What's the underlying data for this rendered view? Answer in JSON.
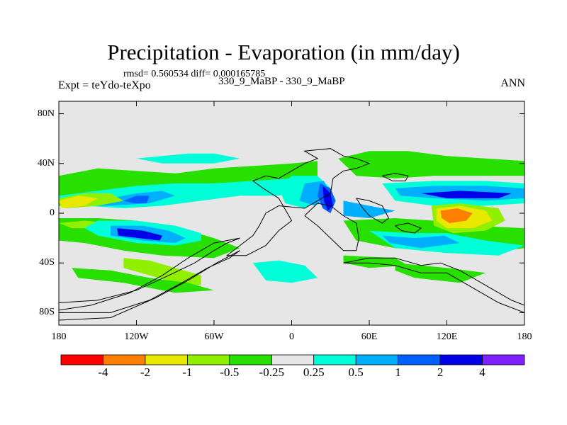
{
  "chart_data": {
    "type": "heatmap",
    "title": "Precipitation - Evaporation (in mm/day)",
    "stats_line": "rmsd= 0.560534 diff= 0.000165785",
    "experiment_label": "Expt = teYdo-teXpo",
    "subtitle": "330_9_MaBP - 330_9_MaBP",
    "season": "ANN",
    "xlabel": "",
    "ylabel": "",
    "x_ticks": [
      "180",
      "120W",
      "60W",
      "0",
      "60E",
      "120E",
      "180"
    ],
    "x_tick_values": [
      -180,
      -120,
      -60,
      0,
      60,
      120,
      180
    ],
    "y_ticks": [
      "80N",
      "40N",
      "0",
      "40S",
      "80S"
    ],
    "y_tick_values": [
      80,
      40,
      0,
      -40,
      -80
    ],
    "xlim": [
      -180,
      180
    ],
    "ylim": [
      -90,
      90
    ],
    "colorbar": {
      "tick_labels": [
        "-4",
        "-2",
        "-1",
        "-0.5",
        "-0.25",
        "0.25",
        "0.5",
        "1",
        "2",
        "4"
      ],
      "colors": [
        "#ff0000",
        "#ff8000",
        "#e8e800",
        "#90f000",
        "#28e000",
        "#e6e6e6",
        "#00ffd8",
        "#00b0ff",
        "#0060ff",
        "#0000e8",
        "#8020ff"
      ]
    },
    "background_color": "#e6e6e6",
    "regions": [
      {
        "level": "-0.25 to -0.5",
        "color": "#28e000",
        "points": [
          [
            -180,
            30
          ],
          [
            -150,
            36
          ],
          [
            -120,
            34
          ],
          [
            -90,
            32
          ],
          [
            -60,
            36
          ],
          [
            -30,
            38
          ],
          [
            0,
            40
          ],
          [
            20,
            42
          ],
          [
            20,
            30
          ],
          [
            0,
            26
          ],
          [
            -30,
            20
          ],
          [
            -60,
            14
          ],
          [
            -90,
            12
          ],
          [
            -120,
            10
          ],
          [
            -150,
            6
          ],
          [
            -180,
            6
          ]
        ]
      },
      {
        "level": "0.25 to 0.5",
        "color": "#00ffd8",
        "points": [
          [
            -180,
            14
          ],
          [
            -150,
            18
          ],
          [
            -120,
            22
          ],
          [
            -90,
            24
          ],
          [
            -60,
            24
          ],
          [
            -30,
            26
          ],
          [
            0,
            28
          ],
          [
            10,
            20
          ],
          [
            -10,
            14
          ],
          [
            -40,
            14
          ],
          [
            -70,
            10
          ],
          [
            -100,
            6
          ],
          [
            -130,
            4
          ],
          [
            -160,
            6
          ],
          [
            -180,
            8
          ]
        ]
      },
      {
        "level": "0.5 to 1",
        "color": "#00b0ff",
        "points": [
          [
            -170,
            10
          ],
          [
            -140,
            12
          ],
          [
            -120,
            16
          ],
          [
            -100,
            18
          ],
          [
            -90,
            14
          ],
          [
            -110,
            8
          ],
          [
            -140,
            6
          ],
          [
            -165,
            6
          ]
        ]
      },
      {
        "level": "-1 to -0.5",
        "color": "#90f000",
        "points": [
          [
            -180,
            12
          ],
          [
            -160,
            16
          ],
          [
            -140,
            16
          ],
          [
            -130,
            10
          ],
          [
            -150,
            6
          ],
          [
            -175,
            4
          ]
        ]
      },
      {
        "level": "-2 to -1",
        "color": "#e8e800",
        "points": [
          [
            -180,
            10
          ],
          [
            -165,
            14
          ],
          [
            -150,
            12
          ],
          [
            -160,
            6
          ],
          [
            -178,
            4
          ]
        ]
      },
      {
        "level": "1 to 2",
        "color": "#0060ff",
        "points": [
          [
            -130,
            10
          ],
          [
            -120,
            14
          ],
          [
            -110,
            14
          ],
          [
            -112,
            8
          ],
          [
            -122,
            8
          ]
        ]
      },
      {
        "level": "0.25 to 0.5",
        "color": "#00ffd8",
        "points": [
          [
            -120,
            44
          ],
          [
            -80,
            48
          ],
          [
            -60,
            48
          ],
          [
            -40,
            44
          ],
          [
            -60,
            40
          ],
          [
            -100,
            40
          ]
        ]
      },
      {
        "level": "-0.25 to -0.5",
        "color": "#28e000",
        "points": [
          [
            -180,
            -4
          ],
          [
            -150,
            -4
          ],
          [
            -120,
            -6
          ],
          [
            -100,
            -10
          ],
          [
            -80,
            -14
          ],
          [
            -60,
            -20
          ],
          [
            -40,
            -28
          ],
          [
            -60,
            -36
          ],
          [
            -100,
            -34
          ],
          [
            -130,
            -30
          ],
          [
            -160,
            -24
          ],
          [
            -180,
            -22
          ]
        ]
      },
      {
        "level": "-0.5 to -1",
        "color": "#90f000",
        "points": [
          [
            -180,
            -8
          ],
          [
            -160,
            -6
          ],
          [
            -140,
            -8
          ],
          [
            -150,
            -12
          ],
          [
            -170,
            -12
          ]
        ]
      },
      {
        "level": "-1 to -0.5",
        "color": "#90f000",
        "points": [
          [
            -130,
            -36
          ],
          [
            -110,
            -38
          ],
          [
            -90,
            -44
          ],
          [
            -70,
            -50
          ],
          [
            -70,
            -58
          ],
          [
            -90,
            -56
          ],
          [
            -110,
            -50
          ],
          [
            -130,
            -44
          ]
        ]
      },
      {
        "level": "-0.25 to -0.5",
        "color": "#28e000",
        "points": [
          [
            -170,
            -44
          ],
          [
            -140,
            -46
          ],
          [
            -110,
            -52
          ],
          [
            -80,
            -56
          ],
          [
            -60,
            -62
          ],
          [
            -90,
            -64
          ],
          [
            -130,
            -56
          ],
          [
            -165,
            -52
          ]
        ]
      },
      {
        "level": "0.25 to 0.5",
        "color": "#00ffd8",
        "points": [
          [
            -150,
            -6
          ],
          [
            -120,
            -6
          ],
          [
            -90,
            -10
          ],
          [
            -70,
            -16
          ],
          [
            -70,
            -22
          ],
          [
            -90,
            -26
          ],
          [
            -120,
            -24
          ],
          [
            -150,
            -18
          ],
          [
            -160,
            -12
          ]
        ]
      },
      {
        "level": "0.5 to 1",
        "color": "#00b0ff",
        "points": [
          [
            -140,
            -10
          ],
          [
            -115,
            -10
          ],
          [
            -95,
            -14
          ],
          [
            -82,
            -20
          ],
          [
            -90,
            -24
          ],
          [
            -115,
            -22
          ],
          [
            -140,
            -18
          ]
        ]
      },
      {
        "level": "2 to 4",
        "color": "#0000e8",
        "points": [
          [
            -135,
            -12
          ],
          [
            -115,
            -14
          ],
          [
            -100,
            -18
          ],
          [
            -102,
            -22
          ],
          [
            -118,
            -20
          ],
          [
            -134,
            -18
          ]
        ]
      },
      {
        "level": "0.25 to 0.5",
        "color": "#00ffd8",
        "points": [
          [
            -30,
            -40
          ],
          [
            -10,
            -38
          ],
          [
            10,
            -42
          ],
          [
            20,
            -52
          ],
          [
            0,
            -56
          ],
          [
            -20,
            -54
          ]
        ]
      },
      {
        "level": "0.25 to 0.5",
        "color": "#00ffd8",
        "points": [
          [
            0,
            30
          ],
          [
            20,
            30
          ],
          [
            30,
            20
          ],
          [
            20,
            10
          ],
          [
            10,
            4
          ],
          [
            -5,
            8
          ],
          [
            -10,
            20
          ]
        ]
      },
      {
        "level": "0.5 to 1",
        "color": "#00b0ff",
        "points": [
          [
            10,
            24
          ],
          [
            25,
            26
          ],
          [
            30,
            14
          ],
          [
            18,
            6
          ],
          [
            6,
            10
          ]
        ]
      },
      {
        "level": "1 to 2",
        "color": "#0060ff",
        "points": [
          [
            22,
            24
          ],
          [
            30,
            20
          ],
          [
            34,
            10
          ],
          [
            30,
            0
          ],
          [
            24,
            4
          ],
          [
            20,
            14
          ]
        ]
      },
      {
        "level": "2 to 4",
        "color": "#0000e8",
        "points": [
          [
            24,
            22
          ],
          [
            30,
            16
          ],
          [
            32,
            6
          ],
          [
            28,
            2
          ],
          [
            25,
            10
          ]
        ]
      },
      {
        "level": "0.5 to 1",
        "color": "#00b0ff",
        "points": [
          [
            40,
            10
          ],
          [
            60,
            6
          ],
          [
            80,
            2
          ],
          [
            60,
            -4
          ],
          [
            40,
            -2
          ]
        ]
      },
      {
        "level": "-0.25 to -0.5",
        "color": "#28e000",
        "points": [
          [
            36,
            44
          ],
          [
            60,
            50
          ],
          [
            90,
            50
          ],
          [
            120,
            46
          ],
          [
            150,
            44
          ],
          [
            180,
            42
          ],
          [
            180,
            30
          ],
          [
            150,
            30
          ],
          [
            110,
            30
          ],
          [
            80,
            28
          ],
          [
            50,
            30
          ]
        ]
      },
      {
        "level": "0.25 to 0.5",
        "color": "#00ffd8",
        "points": [
          [
            70,
            24
          ],
          [
            110,
            26
          ],
          [
            150,
            26
          ],
          [
            180,
            24
          ],
          [
            180,
            8
          ],
          [
            150,
            6
          ],
          [
            110,
            6
          ],
          [
            80,
            10
          ]
        ]
      },
      {
        "level": "0.5 to 1",
        "color": "#00b0ff",
        "points": [
          [
            80,
            20
          ],
          [
            110,
            22
          ],
          [
            150,
            22
          ],
          [
            180,
            20
          ],
          [
            180,
            12
          ],
          [
            150,
            10
          ],
          [
            110,
            12
          ],
          [
            84,
            14
          ]
        ]
      },
      {
        "level": "2 to 4",
        "color": "#0000e8",
        "points": [
          [
            100,
            16
          ],
          [
            130,
            18
          ],
          [
            170,
            16
          ],
          [
            160,
            12
          ],
          [
            120,
            12
          ]
        ]
      },
      {
        "level": "-0.25 to -0.5",
        "color": "#28e000",
        "points": [
          [
            40,
            -6
          ],
          [
            80,
            -4
          ],
          [
            110,
            -6
          ],
          [
            140,
            -10
          ],
          [
            180,
            -12
          ],
          [
            180,
            -28
          ],
          [
            150,
            -32
          ],
          [
            110,
            -30
          ],
          [
            80,
            -28
          ],
          [
            50,
            -22
          ]
        ]
      },
      {
        "level": "-0.5 to -1",
        "color": "#90f000",
        "points": [
          [
            108,
            6
          ],
          [
            130,
            8
          ],
          [
            160,
            4
          ],
          [
            165,
            -6
          ],
          [
            150,
            -14
          ],
          [
            125,
            -16
          ],
          [
            110,
            -10
          ]
        ]
      },
      {
        "level": "-1 to -2",
        "color": "#e8e800",
        "points": [
          [
            112,
            4
          ],
          [
            130,
            6
          ],
          [
            150,
            2
          ],
          [
            155,
            -6
          ],
          [
            140,
            -12
          ],
          [
            120,
            -12
          ],
          [
            112,
            -6
          ]
        ]
      },
      {
        "level": "-2 to -4",
        "color": "#ff8000",
        "points": [
          [
            115,
            2
          ],
          [
            128,
            4
          ],
          [
            140,
            0
          ],
          [
            135,
            -6
          ],
          [
            122,
            -8
          ],
          [
            116,
            -4
          ]
        ]
      },
      {
        "level": "0.25 to 0.5",
        "color": "#00ffd8",
        "points": [
          [
            60,
            -14
          ],
          [
            90,
            -16
          ],
          [
            120,
            -16
          ],
          [
            150,
            -22
          ],
          [
            180,
            -26
          ],
          [
            160,
            -34
          ],
          [
            120,
            -32
          ],
          [
            80,
            -28
          ]
        ]
      },
      {
        "level": "0.5 to 1",
        "color": "#00b0ff",
        "points": [
          [
            70,
            -18
          ],
          [
            95,
            -20
          ],
          [
            118,
            -18
          ],
          [
            130,
            -24
          ],
          [
            100,
            -28
          ],
          [
            76,
            -24
          ]
        ]
      },
      {
        "level": "-0.25 to -0.5",
        "color": "#28e000",
        "points": [
          [
            80,
            -40
          ],
          [
            120,
            -44
          ],
          [
            150,
            -48
          ],
          [
            130,
            -56
          ],
          [
            95,
            -52
          ],
          [
            80,
            -46
          ]
        ]
      },
      {
        "level": "-0.25 to -0.5",
        "color": "#28e000",
        "points": [
          [
            40,
            -34
          ],
          [
            80,
            -36
          ],
          [
            90,
            -42
          ],
          [
            60,
            -44
          ],
          [
            40,
            -40
          ]
        ]
      }
    ]
  }
}
